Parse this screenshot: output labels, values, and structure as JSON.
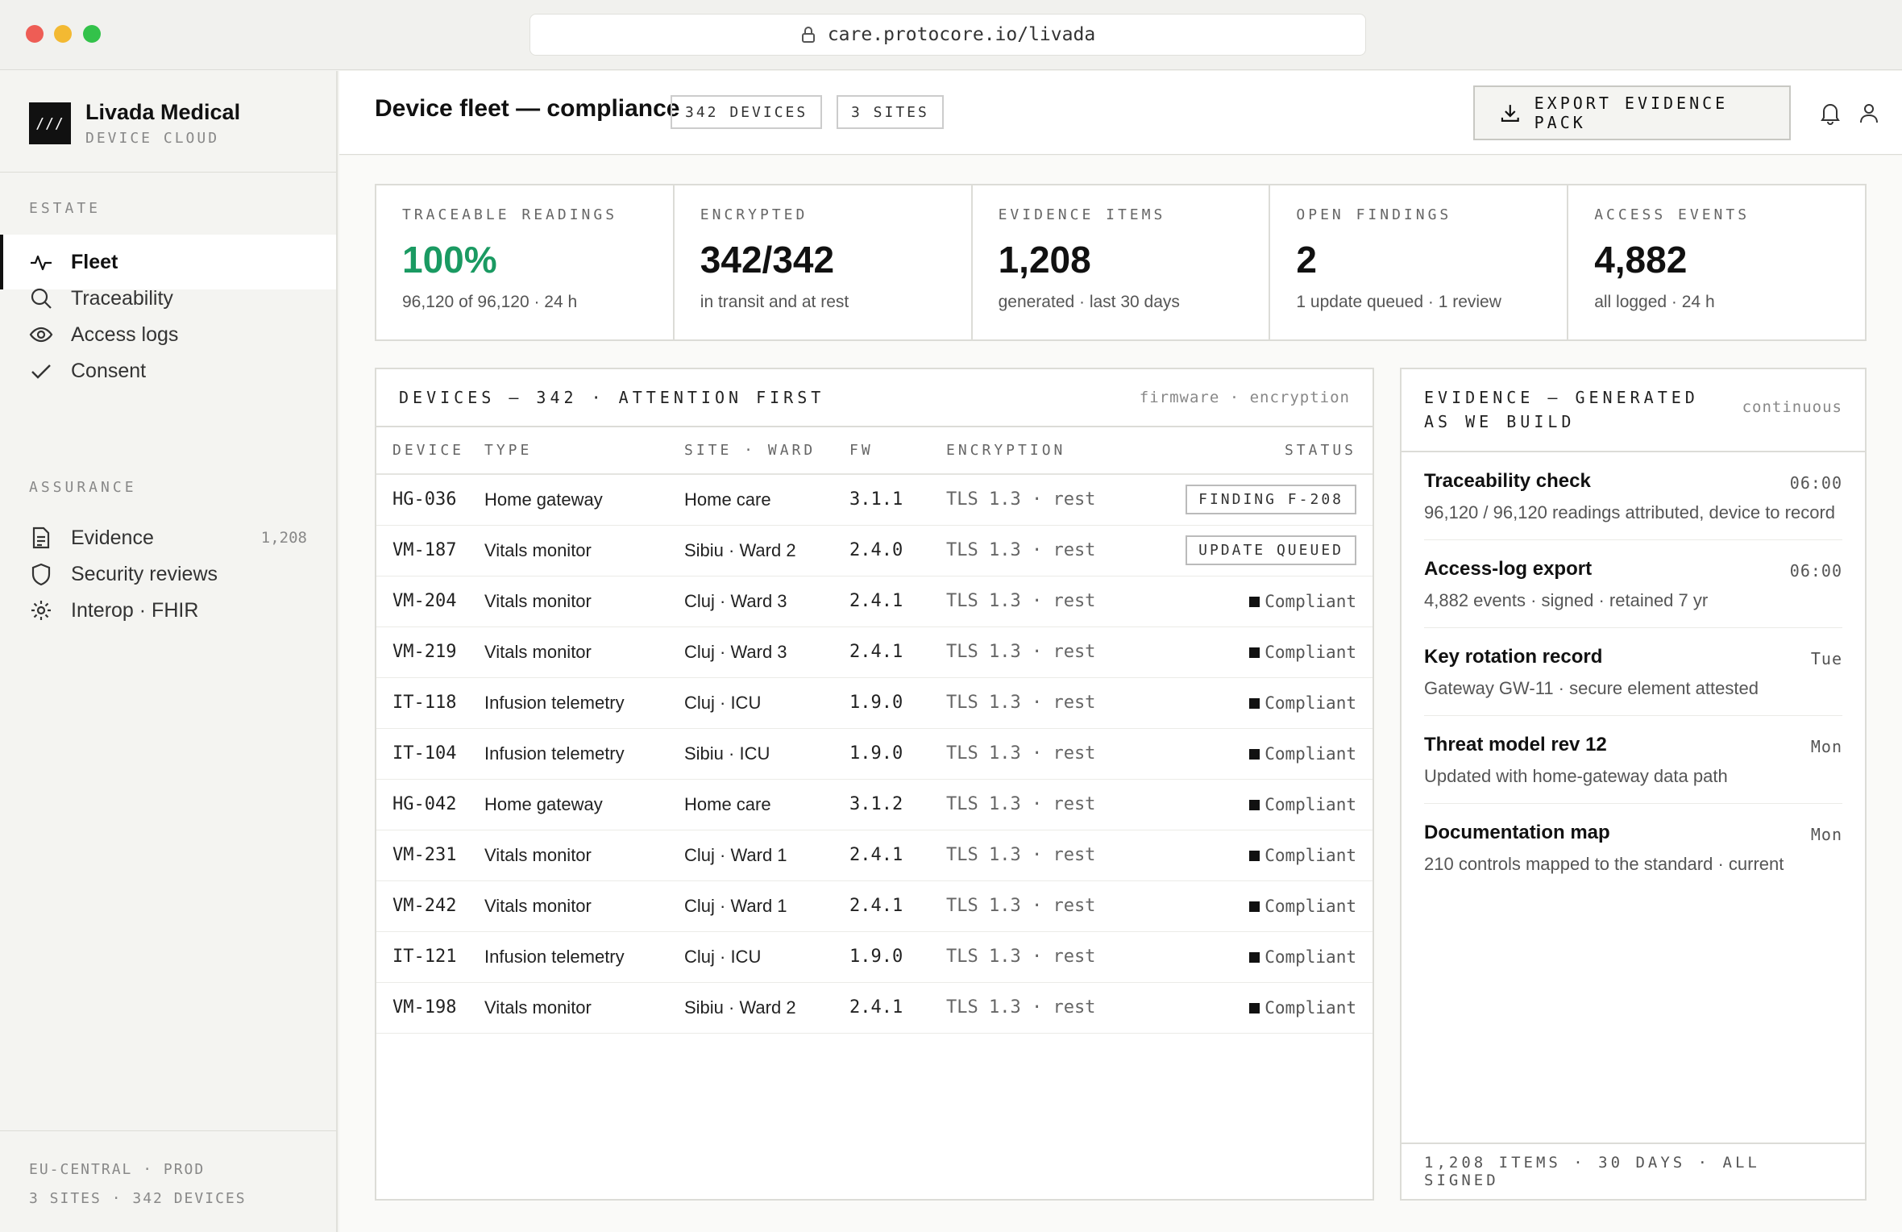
{
  "browser": {
    "url": "care.protocore.io/livada"
  },
  "brand": {
    "name": "Livada Medical",
    "sub": "DEVICE CLOUD",
    "logo": "///"
  },
  "sidebar": {
    "estate_label": "ESTATE",
    "estate_items": [
      {
        "label": "Fleet",
        "icon": "pulse-icon",
        "active": true
      },
      {
        "label": "Traceability",
        "icon": "search-icon"
      },
      {
        "label": "Access logs",
        "icon": "eye-icon"
      },
      {
        "label": "Consent",
        "icon": "check-icon"
      }
    ],
    "assurance_label": "ASSURANCE",
    "assurance_items": [
      {
        "label": "Evidence",
        "icon": "document-icon",
        "count": "1,208"
      },
      {
        "label": "Security reviews",
        "icon": "shield-icon"
      },
      {
        "label": "Interop · FHIR",
        "icon": "gear-icon"
      }
    ],
    "footer_line1": "EU-CENTRAL · PROD",
    "footer_line2": "3 SITES · 342 DEVICES"
  },
  "header": {
    "title": "Device fleet — compliance",
    "pill_devices": "342 DEVICES",
    "pill_sites": "3 SITES",
    "export_label": "EXPORT EVIDENCE PACK"
  },
  "kpis": [
    {
      "label": "TRACEABLE READINGS",
      "value": "100%",
      "sub": "96,120 of 96,120 · 24 h"
    },
    {
      "label": "ENCRYPTED",
      "value": "342/342",
      "sub": "in transit and at rest"
    },
    {
      "label": "EVIDENCE ITEMS",
      "value": "1,208",
      "sub": "generated · last 30 days"
    },
    {
      "label": "OPEN FINDINGS",
      "value": "2",
      "sub": "1 update queued · 1 review"
    },
    {
      "label": "ACCESS EVENTS",
      "value": "4,882",
      "sub": "all logged · 24 h"
    }
  ],
  "devices": {
    "title": "DEVICES — 342 · ATTENTION FIRST",
    "hint": "firmware · encryption",
    "columns": [
      "DEVICE",
      "TYPE",
      "SITE · WARD",
      "FW",
      "ENCRYPTION",
      "STATUS"
    ],
    "rows": [
      {
        "device": "HG-036",
        "type": "Home gateway",
        "site": "Home care",
        "fw": "3.1.1",
        "enc": "TLS 1.3 · rest",
        "status": "FINDING F-208",
        "status_kind": "box"
      },
      {
        "device": "VM-187",
        "type": "Vitals monitor",
        "site": "Sibiu · Ward 2",
        "fw": "2.4.0",
        "enc": "TLS 1.3 · rest",
        "status": "UPDATE QUEUED",
        "status_kind": "box"
      },
      {
        "device": "VM-204",
        "type": "Vitals monitor",
        "site": "Cluj · Ward 3",
        "fw": "2.4.1",
        "enc": "TLS 1.3 · rest",
        "status": "Compliant",
        "status_kind": "ok"
      },
      {
        "device": "VM-219",
        "type": "Vitals monitor",
        "site": "Cluj · Ward 3",
        "fw": "2.4.1",
        "enc": "TLS 1.3 · rest",
        "status": "Compliant",
        "status_kind": "ok"
      },
      {
        "device": "IT-118",
        "type": "Infusion telemetry",
        "site": "Cluj · ICU",
        "fw": "1.9.0",
        "enc": "TLS 1.3 · rest",
        "status": "Compliant",
        "status_kind": "ok"
      },
      {
        "device": "IT-104",
        "type": "Infusion telemetry",
        "site": "Sibiu · ICU",
        "fw": "1.9.0",
        "enc": "TLS 1.3 · rest",
        "status": "Compliant",
        "status_kind": "ok"
      },
      {
        "device": "HG-042",
        "type": "Home gateway",
        "site": "Home care",
        "fw": "3.1.2",
        "enc": "TLS 1.3 · rest",
        "status": "Compliant",
        "status_kind": "ok"
      },
      {
        "device": "VM-231",
        "type": "Vitals monitor",
        "site": "Cluj · Ward 1",
        "fw": "2.4.1",
        "enc": "TLS 1.3 · rest",
        "status": "Compliant",
        "status_kind": "ok"
      },
      {
        "device": "VM-242",
        "type": "Vitals monitor",
        "site": "Cluj · Ward 1",
        "fw": "2.4.1",
        "enc": "TLS 1.3 · rest",
        "status": "Compliant",
        "status_kind": "ok"
      },
      {
        "device": "IT-121",
        "type": "Infusion telemetry",
        "site": "Cluj · ICU",
        "fw": "1.9.0",
        "enc": "TLS 1.3 · rest",
        "status": "Compliant",
        "status_kind": "ok"
      },
      {
        "device": "VM-198",
        "type": "Vitals monitor",
        "site": "Sibiu · Ward 2",
        "fw": "2.4.1",
        "enc": "TLS 1.3 · rest",
        "status": "Compliant",
        "status_kind": "ok"
      }
    ]
  },
  "evidence": {
    "title": "EVIDENCE — GENERATED AS WE BUILD",
    "hint": "continuous",
    "items": [
      {
        "name": "Traceability check",
        "time": "06:00",
        "desc": "96,120 / 96,120 readings attributed, device to record"
      },
      {
        "name": "Access-log export",
        "time": "06:00",
        "desc": "4,882 events · signed · retained 7 yr"
      },
      {
        "name": "Key rotation record",
        "time": "Tue",
        "desc": "Gateway GW-11 · secure element attested"
      },
      {
        "name": "Threat model rev 12",
        "time": "Mon",
        "desc": "Updated with home-gateway data path"
      },
      {
        "name": "Documentation map",
        "time": "Mon",
        "desc": "210 controls mapped to the standard · current"
      }
    ],
    "footer": "1,208 ITEMS · 30 DAYS · ALL SIGNED"
  },
  "colors": {
    "accent_green": "#1a9a62",
    "mac_red": "#ee5d55",
    "mac_yellow": "#f3b932",
    "mac_green": "#33c24a"
  }
}
